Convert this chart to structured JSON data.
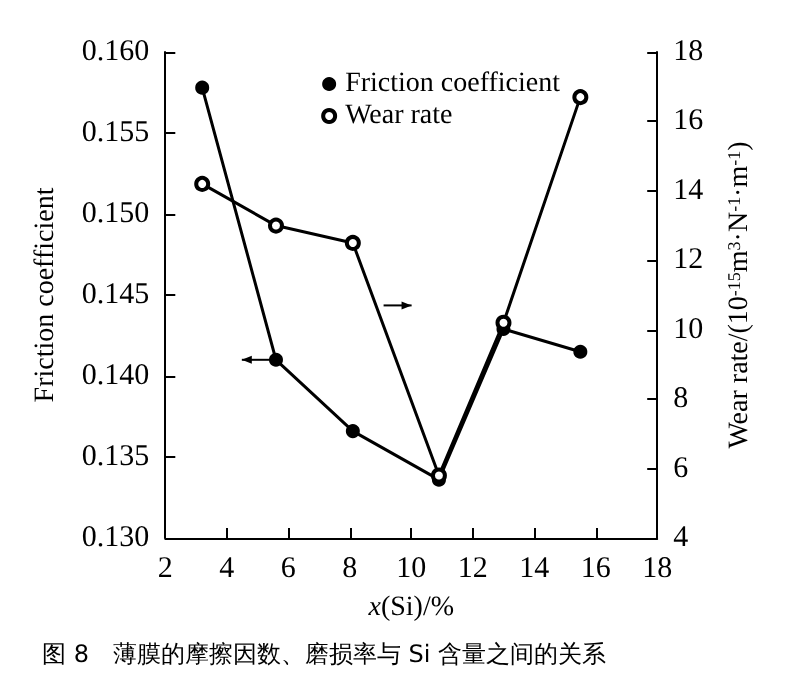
{
  "chart_data": {
    "type": "line",
    "title": "图 8　薄膜的摩擦因数、磨损率与 Si 含量之间的关系",
    "xlabel": "x(Si)/%",
    "ylabel": "Friction coefficient",
    "y2label": "Wear rate/(10$^{-15}$m$^{3}$·N$^{-1}$·m$^{-1}$)",
    "x": [
      3.2,
      5.6,
      8.1,
      10.9,
      13.0,
      15.5
    ],
    "series": [
      {
        "name": "Friction coefficient",
        "color": "#000000",
        "values": [
          0.1578,
          0.141,
          0.1366,
          0.1336,
          0.1429,
          0.1415
        ]
      },
      {
        "name": "Wear rate",
        "color": "#000000",
        "axis": "y2",
        "values": [
          14.2,
          13.0,
          12.5,
          5.8,
          10.2,
          16.7
        ]
      }
    ],
    "xlim": [
      2,
      18
    ],
    "xticks": [
      2,
      4,
      6,
      8,
      10,
      12,
      14,
      16,
      18
    ],
    "ylim": [
      0.13,
      0.16
    ],
    "yticks": [
      {
        "value": 0.13,
        "label": "0.130"
      },
      {
        "value": 0.135,
        "label": "0.135"
      },
      {
        "value": 0.14,
        "label": "0.140"
      },
      {
        "value": 0.145,
        "label": "0.145"
      },
      {
        "value": 0.15,
        "label": "0.150"
      },
      {
        "value": 0.155,
        "label": "0.155"
      },
      {
        "value": 0.16,
        "label": "0.160"
      }
    ],
    "y2lim": [
      4,
      18
    ],
    "y2ticks": [
      4,
      6,
      8,
      10,
      12,
      14,
      16,
      18
    ],
    "grid": false,
    "legend": "top right",
    "marker": "circle",
    "line_style": "solid"
  }
}
